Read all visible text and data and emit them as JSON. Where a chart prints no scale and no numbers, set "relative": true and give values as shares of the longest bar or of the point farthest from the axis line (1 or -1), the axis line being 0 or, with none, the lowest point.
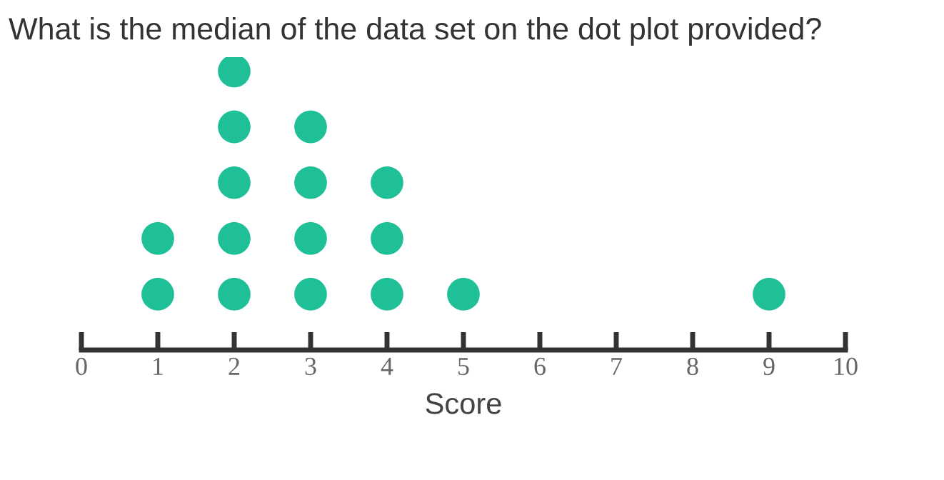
{
  "chart_data": {
    "type": "scatter",
    "title": "What is the median of the data set on the dot plot provided?",
    "xlabel": "Score",
    "relative": true,
    "series": [
      {
        "color": "#1fbf98",
        "x": [
          1,
          1,
          2,
          2,
          2,
          2,
          2,
          3,
          3,
          3,
          3,
          4,
          4,
          4,
          5,
          9
        ],
        "values": [
          0.2,
          0.4,
          0.2,
          0.4,
          0.6,
          0.8,
          1,
          0.2,
          0.4,
          0.6,
          0.8,
          0.2,
          0.4,
          0.6,
          0.2,
          0.2
        ]
      }
    ],
    "xlim": [
      0,
      10
    ],
    "xticks": [
      0,
      1,
      2,
      3,
      4,
      5,
      6,
      7,
      8,
      9,
      10
    ],
    "marker": "circle",
    "grid": false,
    "legend": false,
    "tick_labels": "x"
  }
}
